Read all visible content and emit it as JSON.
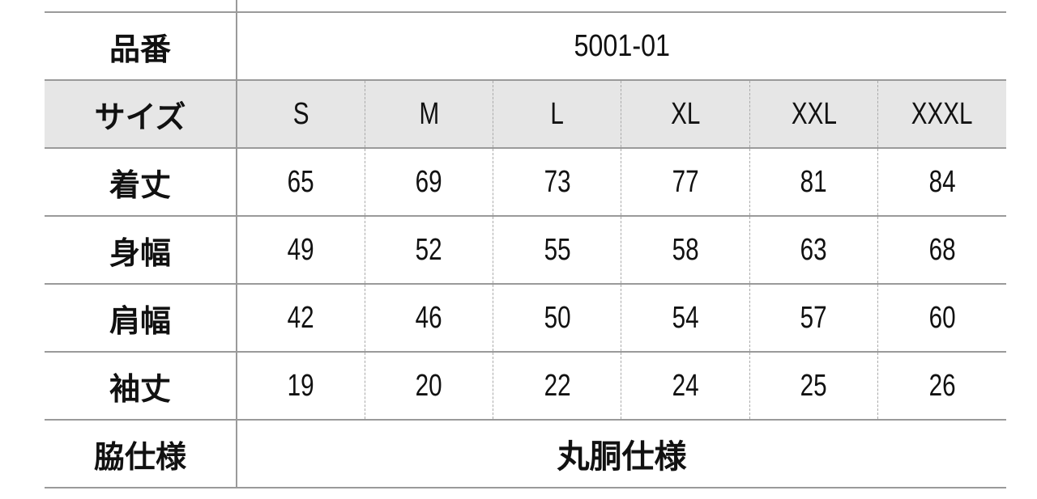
{
  "table": {
    "product_label": "品番",
    "product_code": "5001-01",
    "size_label": "サイズ",
    "sizes": [
      "S",
      "M",
      "L",
      "XL",
      "XXL",
      "XXXL"
    ],
    "rows": [
      {
        "label": "着丈",
        "values": [
          "65",
          "69",
          "73",
          "77",
          "81",
          "84"
        ]
      },
      {
        "label": "身幅",
        "values": [
          "49",
          "52",
          "55",
          "58",
          "63",
          "68"
        ]
      },
      {
        "label": "肩幅",
        "values": [
          "42",
          "46",
          "50",
          "54",
          "57",
          "60"
        ]
      },
      {
        "label": "袖丈",
        "values": [
          "19",
          "20",
          "22",
          "24",
          "25",
          "26"
        ]
      }
    ],
    "side_label": "脇仕様",
    "side_value": "丸胴仕様"
  },
  "colors": {
    "header_bg": "#e6e6e6",
    "rule": "#9a9a9a"
  }
}
